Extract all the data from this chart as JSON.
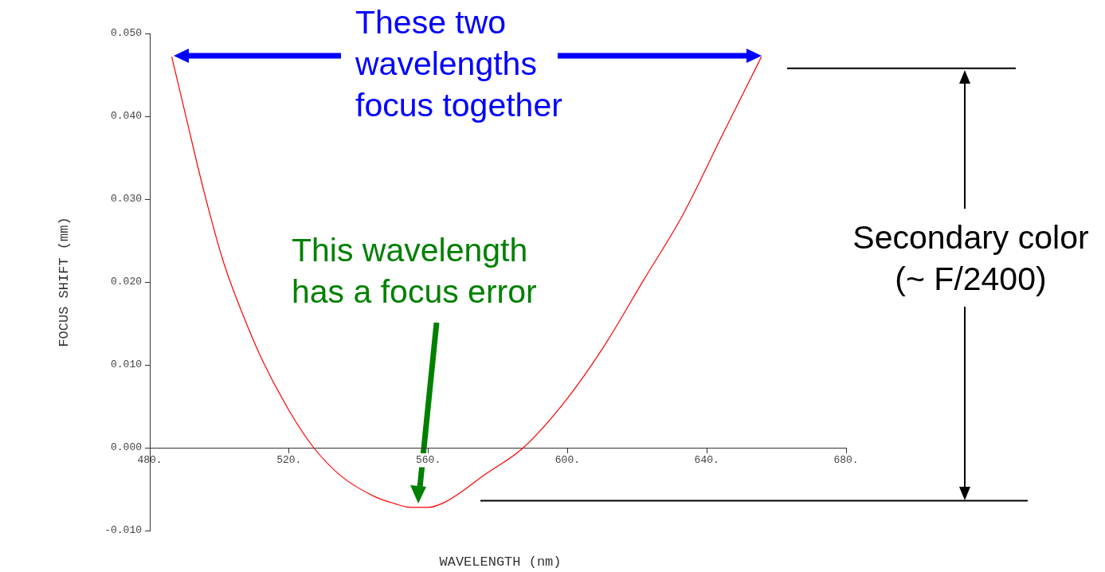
{
  "chart_data": {
    "type": "line",
    "xlabel": "WAVELENGTH (nm)",
    "ylabel": "FOCUS SHIFT (mm)",
    "annotations": [
      "These two wavelengths focus together",
      "This wavelength has a focus error",
      "Secondary color (~ F/2400)"
    ],
    "x": [
      486.3,
      490.6,
      495.4,
      501.1,
      506.7,
      512.4,
      520.0,
      527.1,
      535.2,
      544.6,
      550.0,
      555.0,
      559.8,
      565.1,
      576.4,
      587.3,
      599.1,
      610.4,
      621.8,
      633.1,
      644.4,
      655.7
    ],
    "series": [
      {
        "color": "#ff0000",
        "values": [
          0.0472,
          0.0396,
          0.0312,
          0.0225,
          0.0161,
          0.0105,
          0.0045,
          0.0,
          -0.0035,
          -0.0059,
          -0.0067,
          -0.0072,
          -0.0072,
          -0.0065,
          -0.0032,
          0.0,
          0.0055,
          0.0122,
          0.0202,
          0.0281,
          0.0377,
          0.0472
        ]
      }
    ],
    "xlim": [
      480,
      680
    ],
    "xticks": [
      {
        "value": 480,
        "label": "480."
      },
      {
        "value": 520,
        "label": "520."
      },
      {
        "value": 560,
        "label": "560."
      },
      {
        "value": 600,
        "label": "600."
      },
      {
        "value": 640,
        "label": "640."
      },
      {
        "value": 680,
        "label": "680."
      }
    ],
    "ylim": [
      -0.01,
      0.05
    ],
    "yticks": [
      {
        "value": -0.01,
        "label": "-0.010"
      },
      {
        "value": 0,
        "label": "0.000"
      },
      {
        "value": 0.01,
        "label": "0.010"
      },
      {
        "value": 0.02,
        "label": "0.020"
      },
      {
        "value": 0.03,
        "label": "0.030"
      },
      {
        "value": 0.04,
        "label": "0.040"
      },
      {
        "value": 0.05,
        "label": "0.050"
      }
    ],
    "line_style": "solid",
    "ref_lines": [
      {
        "axis": "y",
        "value": 0.0458,
        "color": "#000000"
      },
      {
        "axis": "y",
        "value": -0.0064,
        "color": "#000000"
      }
    ]
  }
}
